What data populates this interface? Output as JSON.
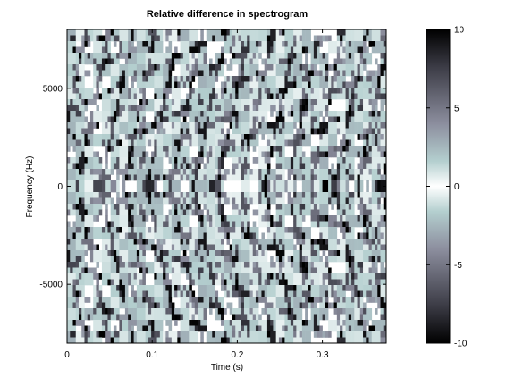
{
  "chart_data": {
    "type": "heatmap",
    "title": "Relative difference in spectrogram",
    "xlabel": "Time (s)",
    "ylabel": "Frequency (Hz)",
    "xlim": [
      0,
      0.375
    ],
    "ylim": [
      -8000,
      8000
    ],
    "x_ticks": [
      {
        "value": 0,
        "label": "0"
      },
      {
        "value": 0.1,
        "label": "0.1"
      },
      {
        "value": 0.2,
        "label": "0.2"
      },
      {
        "value": 0.3,
        "label": "0.3"
      }
    ],
    "y_ticks": [
      {
        "value": 5000,
        "label": "5000"
      },
      {
        "value": 0,
        "label": "0"
      },
      {
        "value": -5000,
        "label": "-5000"
      }
    ],
    "colorbar": {
      "range": [
        -10,
        10
      ],
      "ticks": [
        {
          "value": 10,
          "label": "10"
        },
        {
          "value": 5,
          "label": "5"
        },
        {
          "value": 0,
          "label": "0"
        },
        {
          "value": -5,
          "label": "-5"
        },
        {
          "value": -10,
          "label": "-10"
        }
      ],
      "colormap": "bone-diverging",
      "colors": [
        "#000000",
        "#3c3c46",
        "#8c8e9e",
        "#b4cfcf",
        "#ffffff",
        "#b4cfcf",
        "#8c8e9e",
        "#3c3c46",
        "#000000"
      ]
    },
    "grid": false
  }
}
